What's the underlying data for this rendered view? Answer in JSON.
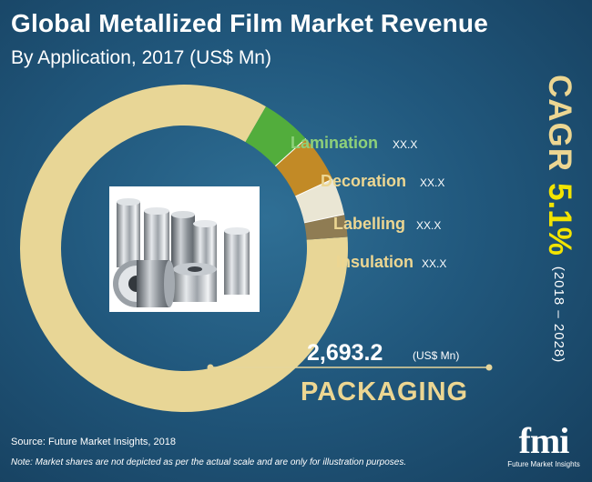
{
  "title": "Global Metallized Film Market Revenue",
  "subtitle": "By Application, 2017 (US$ Mn)",
  "chart_data": {
    "type": "pie",
    "style": "donut",
    "categories": [
      "Packaging",
      "Lamination",
      "Decoration",
      "Labelling",
      "Insulation"
    ],
    "slices": [
      {
        "label": "PACKAGING",
        "value": 2693.2,
        "display_value": "2,693.2",
        "unit": "(US$ Mn)",
        "color": "#e8d696"
      },
      {
        "label": "Lamination",
        "value": "XX.X",
        "color": "#52ad3c"
      },
      {
        "label": "Decoration",
        "value": "XX.X",
        "color": "#c28a26"
      },
      {
        "label": "Labelling",
        "value": "XX.X",
        "color": "#eae6d4"
      },
      {
        "label": "Insulation",
        "value": "XX.X",
        "color": "#8f7c53"
      }
    ],
    "colors": {
      "label_gold": "#ecd692",
      "lamination_label": "#8ed07a"
    }
  },
  "cagr": {
    "label": "CAGR",
    "value": "5.1%",
    "period": "(2018 – 2028)"
  },
  "footer": {
    "source": "Source: Future Market Insights, 2018",
    "note": "Note: Market shares are not depicted as per the actual scale and are only for illustration purposes."
  },
  "logo": {
    "text": "fmi",
    "subtitle": "Future Market Insights"
  }
}
